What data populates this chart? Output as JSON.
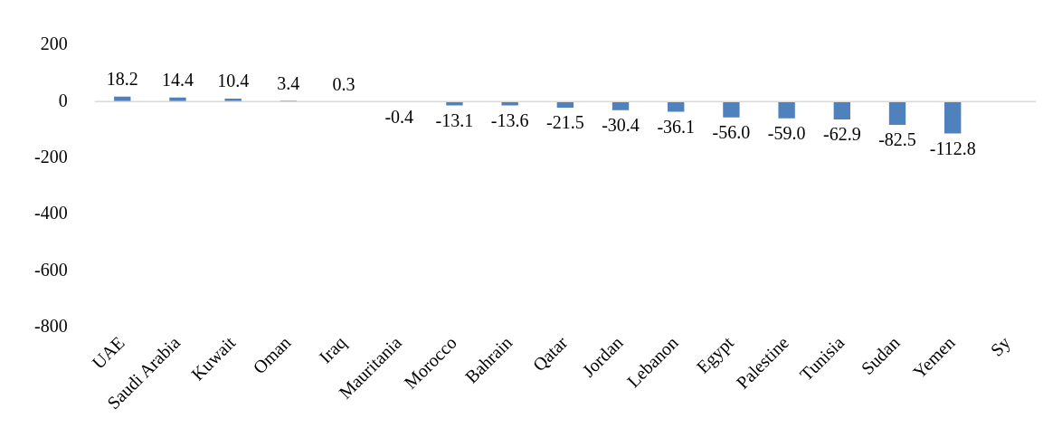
{
  "chart_data": {
    "type": "bar",
    "categories": [
      "UAE",
      "Saudi Arabia",
      "Kuwait",
      "Oman",
      "Iraq",
      "Mauritania",
      "Morocco",
      "Bahrain",
      "Qatar",
      "Jordan",
      "Lebanon",
      "Egypt",
      "Palestine",
      "Tunisia",
      "Sudan",
      "Yemen",
      "Sy"
    ],
    "values": [
      18.2,
      14.4,
      10.4,
      3.4,
      0.3,
      -0.4,
      -13.1,
      -13.6,
      -21.5,
      -30.4,
      -36.1,
      -56.0,
      -59.0,
      -62.9,
      -82.5,
      -112.8,
      null
    ],
    "value_labels": [
      "18.2",
      "14.4",
      "10.4",
      "3.4",
      "0.3",
      "-0.4",
      "-13.1",
      "-13.6",
      "-21.5",
      "-30.4",
      "-36.1",
      "-56.0",
      "-59.0",
      "-62.9",
      "-82.5",
      "-112.8",
      null
    ],
    "color": "#4f81bd",
    "ylim": [
      -800,
      200
    ],
    "yticks": [
      200,
      0,
      -200,
      -400,
      -600,
      -800
    ],
    "grid": false,
    "ref_lines": [
      {
        "axis": "y",
        "value": 0,
        "color": "#d9d9d9"
      }
    ],
    "legend": false
  }
}
